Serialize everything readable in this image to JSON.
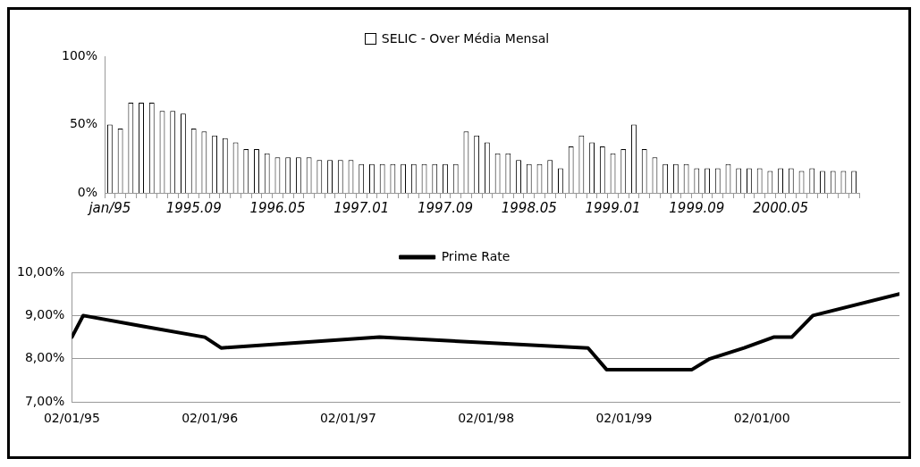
{
  "chart_data": [
    {
      "type": "bar",
      "categories": [
        "jan/95",
        null,
        null,
        null,
        null,
        null,
        null,
        null,
        "1995.09",
        null,
        null,
        null,
        null,
        null,
        null,
        null,
        "1996.05",
        null,
        null,
        null,
        null,
        null,
        null,
        null,
        "1997.01",
        null,
        null,
        null,
        null,
        null,
        null,
        null,
        "1997.09",
        null,
        null,
        null,
        null,
        null,
        null,
        null,
        "1998.05",
        null,
        null,
        null,
        null,
        null,
        null,
        null,
        "1999.01",
        null,
        null,
        null,
        null,
        null,
        null,
        null,
        "1999.09",
        null,
        null,
        null,
        null,
        null,
        null,
        null,
        "2000.05",
        null,
        null,
        null,
        null,
        null,
        null,
        null
      ],
      "series": [
        {
          "name": "SELIC - Over Média Mensal",
          "color": "#ffffff",
          "values": [
            50,
            47,
            66,
            66,
            66,
            60,
            60,
            58,
            47,
            45,
            42,
            40,
            37,
            32,
            32,
            29,
            26,
            26,
            26,
            26,
            24,
            24,
            24,
            24,
            21,
            21,
            21,
            21,
            21,
            21,
            21,
            21,
            21,
            21,
            45,
            42,
            37,
            29,
            29,
            24,
            21,
            21,
            24,
            18,
            34,
            42,
            37,
            34,
            29,
            32,
            50,
            32,
            26,
            21,
            21,
            21,
            18,
            18,
            18,
            21,
            18,
            18,
            18,
            16,
            18,
            18,
            16,
            18,
            16,
            16,
            16,
            16
          ]
        }
      ],
      "ylim": [
        0,
        100
      ],
      "yticks": [
        {
          "value": 0,
          "label": "0%"
        },
        {
          "value": 50,
          "label": "50%"
        },
        {
          "value": 100,
          "label": "100%"
        }
      ],
      "grid": false,
      "legend": "top"
    },
    {
      "type": "line",
      "x": [
        "1995-01-02",
        "1995-02-01",
        "1995-07-10",
        "1995-12-20",
        "1996-02-01",
        "1997-03-26",
        "1998-09-29",
        "1998-11-17",
        "1999-07-01",
        "1999-08-17",
        "1999-11-16",
        "2000-02-02",
        "2000-03-21",
        "2000-05-16",
        "2000-12-31"
      ],
      "series": [
        {
          "name": "Prime Rate",
          "color": "#000000",
          "values": [
            8.5,
            9.0,
            8.75,
            8.5,
            8.25,
            8.5,
            8.25,
            7.75,
            7.75,
            8.0,
            8.25,
            8.5,
            8.5,
            9.0,
            9.5
          ]
        }
      ],
      "xlim": [
        "1995-01-02",
        "2000-12-31"
      ],
      "xticks": [
        {
          "value": "1995-01-02",
          "label": "02/01/95"
        },
        {
          "value": "1996-01-02",
          "label": "02/01/96"
        },
        {
          "value": "1997-01-02",
          "label": "02/01/97"
        },
        {
          "value": "1998-01-02",
          "label": "02/01/98"
        },
        {
          "value": "1999-01-02",
          "label": "02/01/99"
        },
        {
          "value": "2000-01-02",
          "label": "02/01/00"
        }
      ],
      "ylim": [
        7,
        10
      ],
      "yticks": [
        {
          "value": 7,
          "label": "7,00%"
        },
        {
          "value": 8,
          "label": "8,00%"
        },
        {
          "value": 9,
          "label": "9,00%"
        },
        {
          "value": 10,
          "label": "10,00%"
        }
      ],
      "grid": "y",
      "legend": "top",
      "marker": "none",
      "line_style": "solid"
    }
  ]
}
